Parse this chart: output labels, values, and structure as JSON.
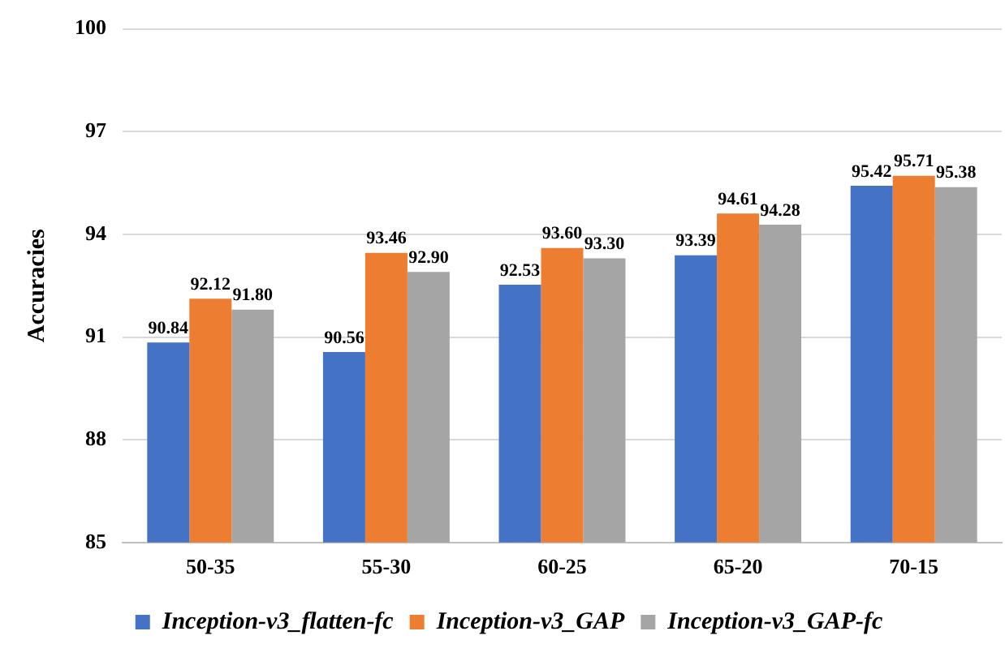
{
  "chart_data": {
    "type": "bar",
    "ylabel": "Accuracies",
    "categories": [
      "50-35",
      "55-30",
      "60-25",
      "65-20",
      "70-15"
    ],
    "series": [
      {
        "name": "Inception-v3_flatten-fc",
        "color": "#4472c4",
        "values": [
          90.84,
          90.56,
          92.53,
          93.39,
          95.42
        ],
        "value_labels": [
          "90.84",
          "90.56",
          "92.53",
          "93.39",
          "95.42"
        ]
      },
      {
        "name": "Inception-v3_GAP",
        "color": "#ed7d31",
        "values": [
          92.12,
          93.46,
          93.6,
          94.61,
          95.71
        ],
        "value_labels": [
          "92.12",
          "93.46",
          "93.60",
          "94.61",
          "95.71"
        ]
      },
      {
        "name": "Inception-v3_GAP-fc",
        "color": "#a5a5a5",
        "values": [
          91.8,
          92.9,
          93.3,
          94.28,
          95.38
        ],
        "value_labels": [
          "91.80",
          "92.90",
          "93.30",
          "94.28",
          "95.38"
        ]
      }
    ],
    "ylim": [
      85,
      100
    ],
    "yticks": [
      85,
      88,
      91,
      94,
      97,
      100
    ],
    "grid": "y",
    "legend": "bottom"
  }
}
